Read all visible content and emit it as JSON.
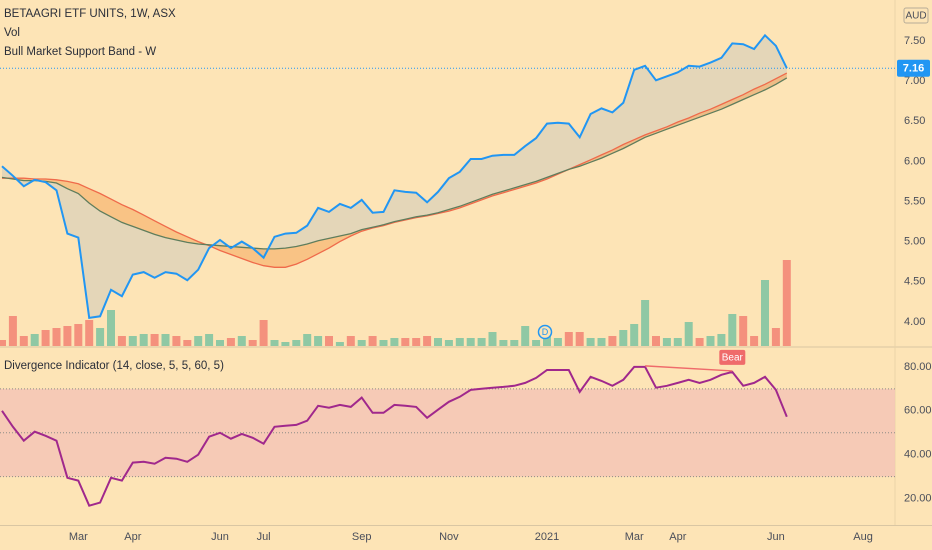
{
  "chart_data": [
    {
      "type": "line",
      "title": "BETAAGRI ETF UNITS, 1W, ASX",
      "currency": "AUD",
      "last_value_label": "7.16",
      "categories": [
        null,
        null,
        null,
        null,
        null,
        null,
        null,
        "Mar",
        null,
        null,
        null,
        null,
        "Apr",
        null,
        null,
        null,
        null,
        null,
        null,
        null,
        "Jun",
        null,
        null,
        null,
        "Jul",
        null,
        null,
        null,
        null,
        null,
        null,
        null,
        null,
        "Sep",
        null,
        null,
        null,
        null,
        null,
        null,
        null,
        "Nov",
        null,
        null,
        null,
        null,
        null,
        null,
        null,
        null,
        "2021",
        null,
        null,
        null,
        null,
        null,
        null,
        null,
        "Mar",
        null,
        null,
        null,
        "Apr",
        null,
        null,
        null,
        null,
        null,
        null,
        null,
        null,
        "Jun",
        null,
        null,
        null,
        null,
        null,
        null,
        null,
        "Aug"
      ],
      "ylim": [
        3.7,
        8.01
      ],
      "yticks": [
        {
          "value": 4,
          "label": "4.00"
        },
        {
          "value": 4.5,
          "label": "4.50"
        },
        {
          "value": 5,
          "label": "5.00"
        },
        {
          "value": 5.5,
          "label": "5.50"
        },
        {
          "value": 6,
          "label": "6.00"
        },
        {
          "value": 6.5,
          "label": "6.50"
        },
        {
          "value": 7,
          "label": "7.00"
        },
        {
          "value": 7.5,
          "label": "7.50"
        }
      ],
      "price": {
        "color": "#2196f3",
        "values": [
          5.94,
          5.82,
          5.69,
          5.77,
          5.74,
          5.64,
          5.1,
          5.05,
          4.05,
          4.07,
          4.4,
          4.32,
          4.59,
          4.62,
          4.55,
          4.62,
          4.6,
          4.52,
          4.65,
          4.92,
          5.02,
          4.92,
          5.0,
          4.92,
          4.8,
          5.06,
          5.1,
          5.11,
          5.2,
          5.42,
          5.37,
          5.47,
          5.42,
          5.52,
          5.36,
          5.37,
          5.64,
          5.62,
          5.61,
          5.49,
          5.62,
          5.79,
          5.87,
          6.03,
          6.03,
          6.07,
          6.08,
          6.08,
          6.19,
          6.29,
          6.47,
          6.48,
          6.47,
          6.3,
          6.59,
          6.66,
          6.61,
          6.73,
          7.14,
          7.19,
          7.01,
          7.06,
          7.11,
          7.19,
          7.18,
          7.23,
          7.29,
          7.47,
          7.46,
          7.4,
          7.57,
          7.44,
          7.16,
          null,
          null,
          null,
          null,
          null,
          null,
          null
        ]
      },
      "band": {
        "name": "Bull Market Support Band - W",
        "fill": "#f6a85c",
        "sma": {
          "color": "#ef6a4a",
          "values": [
            5.79,
            5.79,
            5.79,
            5.78,
            5.78,
            5.77,
            5.75,
            5.72,
            5.66,
            5.6,
            5.53,
            5.46,
            5.4,
            5.33,
            5.26,
            5.19,
            5.12,
            5.06,
            5.0,
            4.95,
            4.89,
            4.84,
            4.79,
            4.74,
            4.7,
            4.68,
            4.68,
            4.72,
            4.78,
            4.85,
            4.92,
            5.0,
            5.07,
            5.13,
            5.17,
            5.2,
            5.24,
            5.27,
            5.3,
            5.32,
            5.35,
            5.38,
            5.42,
            5.47,
            5.52,
            5.57,
            5.61,
            5.65,
            5.69,
            5.73,
            5.78,
            5.84,
            5.9,
            5.96,
            6.02,
            6.08,
            6.14,
            6.21,
            6.27,
            6.33,
            6.38,
            6.43,
            6.49,
            6.54,
            6.6,
            6.65,
            6.71,
            6.77,
            6.83,
            6.9,
            6.96,
            7.03,
            7.1,
            null,
            null,
            null,
            null,
            null,
            null,
            null
          ]
        },
        "ema": {
          "color": "#5f7d5c",
          "values": [
            5.8,
            5.78,
            5.76,
            5.76,
            5.75,
            5.73,
            5.66,
            5.6,
            5.48,
            5.38,
            5.31,
            5.24,
            5.19,
            5.14,
            5.09,
            5.05,
            5.02,
            4.99,
            4.97,
            4.96,
            4.95,
            4.94,
            4.93,
            4.92,
            4.91,
            4.91,
            4.92,
            4.94,
            4.97,
            5.01,
            5.04,
            5.07,
            5.1,
            5.15,
            5.18,
            5.21,
            5.25,
            5.28,
            5.31,
            5.33,
            5.36,
            5.4,
            5.44,
            5.49,
            5.54,
            5.59,
            5.63,
            5.67,
            5.71,
            5.75,
            5.8,
            5.85,
            5.9,
            5.94,
            5.99,
            6.04,
            6.1,
            6.16,
            6.23,
            6.3,
            6.35,
            6.4,
            6.45,
            6.5,
            6.55,
            6.6,
            6.65,
            6.71,
            6.77,
            6.83,
            6.89,
            6.96,
            7.04,
            null,
            null,
            null,
            null,
            null,
            null,
            null
          ]
        }
      },
      "volume": {
        "name": "Vol",
        "up_color": "#8fc8a4",
        "down_color": "#f4917d",
        "values": [
          6,
          30,
          10,
          12,
          16,
          18,
          20,
          22,
          26,
          18,
          36,
          10,
          10,
          12,
          12,
          12,
          10,
          6,
          10,
          12,
          6,
          8,
          10,
          6,
          26,
          6,
          4,
          6,
          12,
          10,
          10,
          4,
          10,
          6,
          10,
          6,
          8,
          8,
          8,
          10,
          8,
          6,
          8,
          8,
          8,
          14,
          6,
          6,
          20,
          6,
          10,
          8,
          14,
          14,
          8,
          8,
          10,
          16,
          22,
          46,
          10,
          8,
          8,
          24,
          8,
          10,
          12,
          32,
          30,
          10,
          66,
          18,
          86,
          null,
          null,
          null,
          null,
          null,
          null,
          null
        ]
      },
      "dividend_label": "D"
    },
    {
      "type": "line",
      "title": "Divergence Indicator (14, close, 5, 5, 60, 5)",
      "ylim": [
        8,
        88.6
      ],
      "yticks": [
        {
          "value": 20,
          "label": "20.00"
        },
        {
          "value": 40,
          "label": "40.00"
        },
        {
          "value": 60,
          "label": "60.00"
        },
        {
          "value": 80,
          "label": "80.00"
        }
      ],
      "bands": [
        30,
        70
      ],
      "midline": 50,
      "band_color": "#f5c6b6",
      "series": [
        {
          "color": "#a0288c",
          "values": [
            60,
            52.7,
            46.4,
            50.5,
            48.6,
            46.4,
            29.5,
            28.2,
            16.8,
            18.2,
            29.5,
            28.2,
            36.4,
            36.8,
            35.9,
            38.6,
            38.2,
            36.8,
            40,
            48.2,
            50,
            47.3,
            49.5,
            47.7,
            45,
            52.7,
            53.2,
            53.6,
            55.5,
            62.3,
            61.4,
            62.7,
            61.8,
            66,
            59.1,
            59.1,
            62.7,
            62.3,
            61.8,
            56.8,
            60.5,
            64.1,
            66.4,
            69.5,
            70,
            70.5,
            70.9,
            71.4,
            72.7,
            75,
            78.6,
            78.6,
            78.6,
            68.6,
            75.5,
            73.6,
            71.4,
            74.1,
            80,
            80,
            70.5,
            71.4,
            72.7,
            74.1,
            72.7,
            74.1,
            76.4,
            77.7,
            71.4,
            72.7,
            75.5,
            69.5,
            57.3,
            null,
            null,
            null,
            null,
            null,
            null,
            null
          ]
        }
      ],
      "divergence": {
        "label": "Bear",
        "color": "#ef6b6b"
      }
    }
  ]
}
